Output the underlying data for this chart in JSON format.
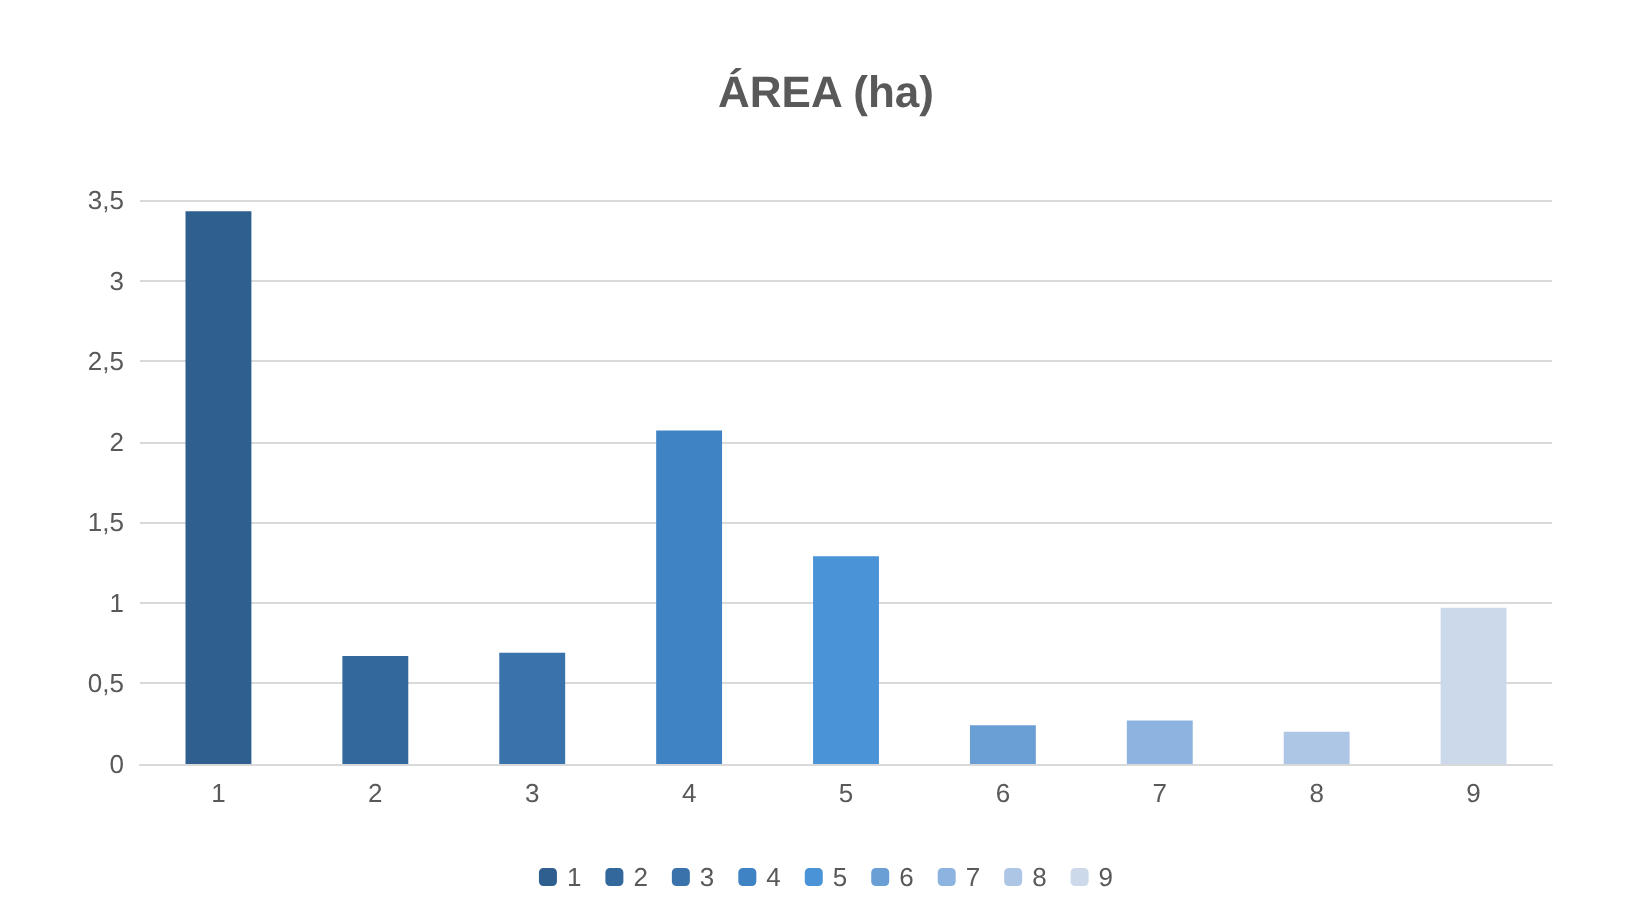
{
  "chart_data": {
    "type": "bar",
    "title": "ÁREA (ha)",
    "categories": [
      "1",
      "2",
      "3",
      "4",
      "5",
      "6",
      "7",
      "8",
      "9"
    ],
    "series": [
      {
        "name": "1",
        "color": "#2f5f8f",
        "values": [
          3.43,
          null,
          null,
          null,
          null,
          null,
          null,
          null,
          null
        ]
      },
      {
        "name": "2",
        "color": "#33689c",
        "values": [
          null,
          0.67,
          null,
          null,
          null,
          null,
          null,
          null,
          null
        ]
      },
      {
        "name": "3",
        "color": "#3a72ab",
        "values": [
          null,
          null,
          0.69,
          null,
          null,
          null,
          null,
          null,
          null
        ]
      },
      {
        "name": "4",
        "color": "#4083c4",
        "values": [
          null,
          null,
          null,
          2.07,
          null,
          null,
          null,
          null,
          null
        ]
      },
      {
        "name": "5",
        "color": "#4a93d6",
        "values": [
          null,
          null,
          null,
          null,
          1.29,
          null,
          null,
          null,
          null
        ]
      },
      {
        "name": "6",
        "color": "#6a9fd6",
        "values": [
          null,
          null,
          null,
          null,
          null,
          0.24,
          null,
          null,
          null
        ]
      },
      {
        "name": "7",
        "color": "#8db3e0",
        "values": [
          null,
          null,
          null,
          null,
          null,
          null,
          0.27,
          null,
          null
        ]
      },
      {
        "name": "8",
        "color": "#aec6e6",
        "values": [
          null,
          null,
          null,
          null,
          null,
          null,
          null,
          0.2,
          null
        ]
      },
      {
        "name": "9",
        "color": "#ccd9ea",
        "values": [
          null,
          null,
          null,
          null,
          null,
          null,
          null,
          null,
          0.97
        ]
      }
    ],
    "stacked": true,
    "ylim": [
      0,
      3.5
    ],
    "yticks": [
      0,
      {
        "value": 0.5,
        "label": "0,5"
      },
      1,
      {
        "value": 1.5,
        "label": "1,5"
      },
      2,
      {
        "value": 2.5,
        "label": "2,5"
      },
      3,
      {
        "value": 3.5,
        "label": "3,5"
      }
    ],
    "grid": true,
    "legend": "bottom"
  }
}
